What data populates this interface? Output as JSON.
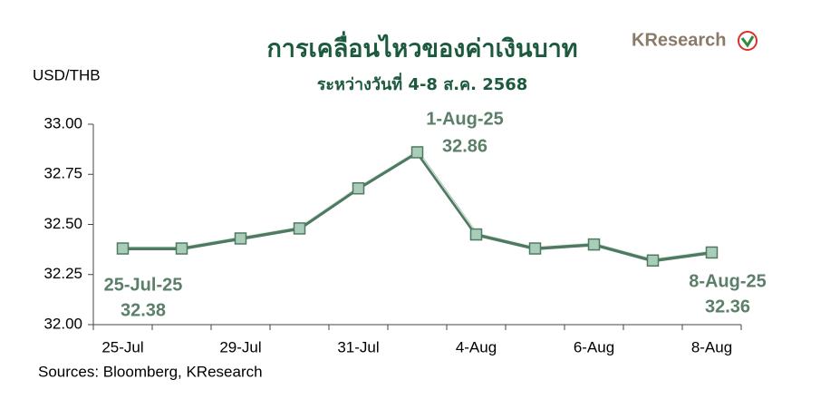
{
  "chart_data": {
    "type": "line",
    "title": "การเคลื่อนไหวของค่าเงินบาท",
    "subtitle": "ระหว่างวันที่ 4-8 ส.ค. 2568",
    "y_label": "USD/THB",
    "source": "Sources: Bloomberg, KResearch",
    "logo": "KResearch",
    "categories": [
      "25-Jul",
      null,
      "29-Jul",
      null,
      "31-Jul",
      null,
      "4-Aug",
      null,
      "6-Aug",
      null,
      "8-Aug"
    ],
    "series": [
      {
        "color": "#4f7a62",
        "marker_color": "#a9cdb8",
        "values": [
          32.38,
          32.38,
          32.43,
          32.48,
          32.68,
          32.86,
          32.45,
          32.38,
          32.4,
          32.32,
          32.36
        ]
      }
    ],
    "annotations": [
      "25-Jul-25",
      "1-Aug-25",
      "8-Aug-25"
    ],
    "ylim": [
      32.0,
      33.0
    ],
    "yticks": [
      {
        "value": 32,
        "label": "32.00"
      },
      {
        "value": 32.25,
        "label": "32.25"
      },
      {
        "value": 32.5,
        "label": "32.50"
      },
      {
        "value": 32.75,
        "label": "32.75"
      },
      {
        "value": 33,
        "label": "33.00"
      }
    ],
    "grid": false
  }
}
